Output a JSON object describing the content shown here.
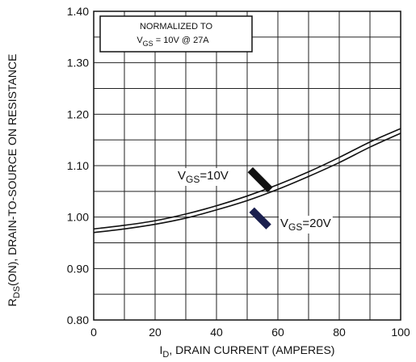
{
  "chart_data": {
    "type": "line",
    "xlabel": "I",
    "xlabel_sub": "D",
    "xlabel_rest": ", DRAIN CURRENT (AMPERES)",
    "ylabel": "R",
    "ylabel_sub": "DS",
    "ylabel_rest": "(ON), DRAIN-TO-SOURCE ON RESISTANCE",
    "xlim": [
      0,
      100
    ],
    "ylim": [
      0.8,
      1.4
    ],
    "x_ticks": [
      0,
      20,
      40,
      60,
      80,
      100
    ],
    "x_tick_labels": [
      "0",
      "20",
      "40",
      "60",
      "80",
      "100"
    ],
    "y_ticks": [
      0.8,
      0.9,
      1.0,
      1.1,
      1.2,
      1.3,
      1.4
    ],
    "y_tick_labels": [
      "0.80",
      "0.90",
      "1.00",
      "1.10",
      "1.20",
      "1.30",
      "1.40"
    ],
    "x_grid_step": 10,
    "y_grid_step": 0.05,
    "grid": true,
    "annotation": {
      "line1": "NORMALIZED TO",
      "line2_main": "V",
      "line2_sub": "GS",
      "line2_rest": " = 10V  @  27A"
    },
    "series": [
      {
        "label_main": "V",
        "label_sub": "GS",
        "label_rest": "=10V",
        "arrow_color": "#111111",
        "x": [
          0,
          10,
          20,
          30,
          40,
          50,
          60,
          70,
          80,
          90,
          100
        ],
        "y": [
          0.977,
          0.984,
          0.993,
          1.006,
          1.022,
          1.041,
          1.063,
          1.088,
          1.116,
          1.146,
          1.172
        ]
      },
      {
        "label_main": "V",
        "label_sub": "GS",
        "label_rest": "=20V",
        "arrow_color": "#1a1f4e",
        "x": [
          0,
          10,
          20,
          30,
          40,
          50,
          60,
          70,
          80,
          90,
          100
        ],
        "y": [
          0.97,
          0.977,
          0.986,
          0.998,
          1.014,
          1.032,
          1.054,
          1.079,
          1.106,
          1.136,
          1.163
        ]
      }
    ]
  }
}
